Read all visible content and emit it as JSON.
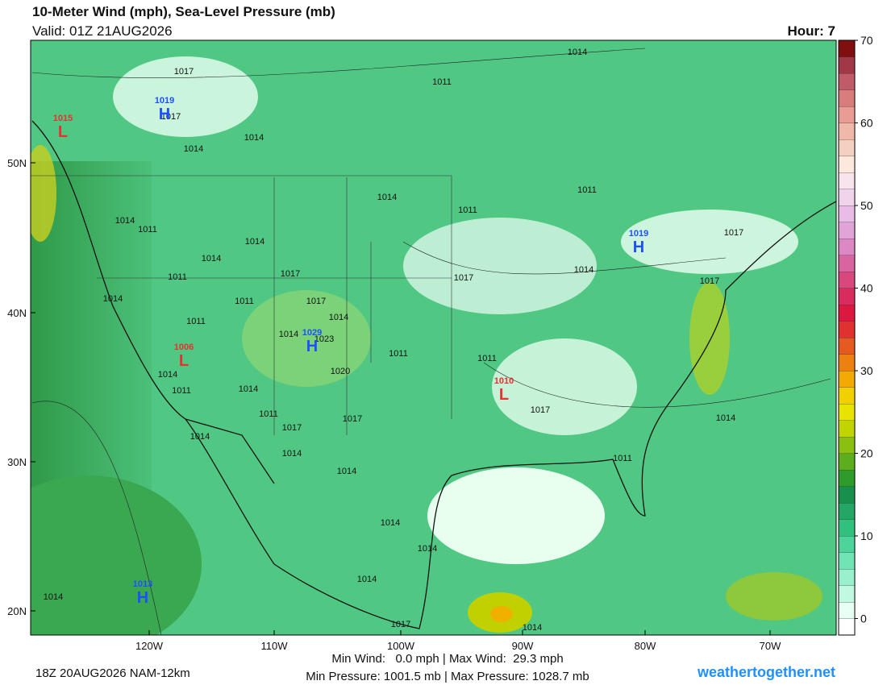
{
  "header": {
    "title": "10-Meter Wind (mph), Sea-Level Pressure (mb)",
    "valid": "Valid: 01Z 21AUG2026",
    "hour": "Hour: 7"
  },
  "map": {
    "lat_labels": [
      "50N",
      "40N",
      "30N",
      "20N"
    ],
    "lon_labels": [
      "120W",
      "110W",
      "100W",
      "90W",
      "80W",
      "70W"
    ],
    "pressure_centers": [
      {
        "letter": "H",
        "value": "1019"
      },
      {
        "letter": "L",
        "value": "1015"
      },
      {
        "letter": "H",
        "value": "1029"
      },
      {
        "letter": "L",
        "value": "1006"
      },
      {
        "letter": "L",
        "value": "1010"
      },
      {
        "letter": "H",
        "value": "1019"
      },
      {
        "letter": "H",
        "value": "1013"
      }
    ],
    "isobar_labels": [
      "1017",
      "1017",
      "1014",
      "1014",
      "1011",
      "1014",
      "1011",
      "1014",
      "1011",
      "1014",
      "1014",
      "1011",
      "1014",
      "1017",
      "1014",
      "1011",
      "1011",
      "1017",
      "1014",
      "1023",
      "1020",
      "1014",
      "1011",
      "1014",
      "1011",
      "1014",
      "1011",
      "1017",
      "1017",
      "1017",
      "1014",
      "1011",
      "1011",
      "1017",
      "1014",
      "1014",
      "1014",
      "1014",
      "1014",
      "1014",
      "1017",
      "1014",
      "1011",
      "1014",
      "1017",
      "1017",
      "1014"
    ]
  },
  "colorbar": {
    "labels": [
      0,
      10,
      20,
      30,
      40,
      50,
      60,
      70
    ],
    "colors": [
      "#ffffff",
      "#e8fff4",
      "#c0f8e0",
      "#98f0cc",
      "#70e4b4",
      "#4cd49a",
      "#32c07e",
      "#22a864",
      "#16904c",
      "#2e9c2a",
      "#5cae1c",
      "#8cc010",
      "#c0d400",
      "#e6e400",
      "#f2d000",
      "#f2aa00",
      "#ec8010",
      "#e45a20",
      "#e03030",
      "#dc1840",
      "#d82c5c",
      "#d8487c",
      "#d864a0",
      "#dc88c4",
      "#e0a4d8",
      "#e8bce4",
      "#f0d4ec",
      "#f8e4ec",
      "#fce8dc",
      "#f4d0c0",
      "#f0b8a8",
      "#e89c94",
      "#d87c7c",
      "#c05c68",
      "#a03848",
      "#801010"
    ]
  },
  "footer": {
    "run": "18Z 20AUG2026 NAM-12km",
    "wind": "Min Wind:   0.0 mph | Max Wind:  29.3 mph",
    "pressure": "Min Pressure: 1001.5 mb | Max Pressure: 1028.7 mb",
    "site": "weathertogether.net"
  }
}
